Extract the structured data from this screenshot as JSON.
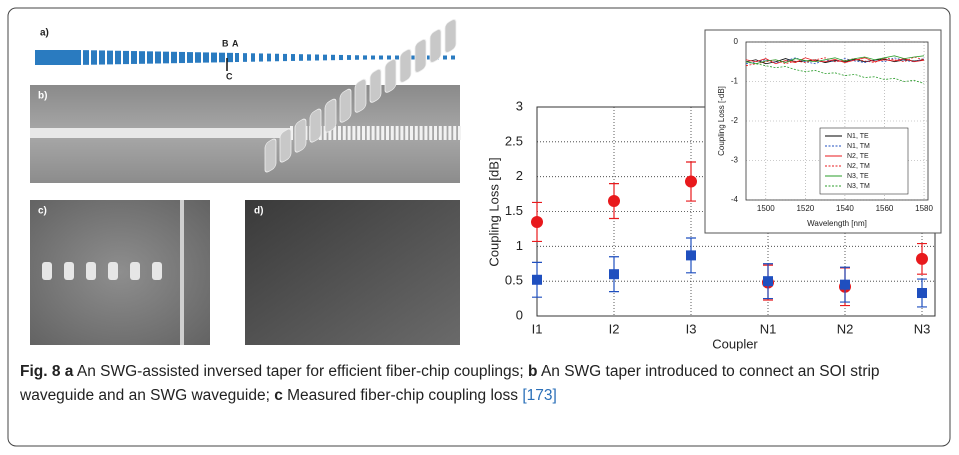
{
  "figure": {
    "panels": {
      "a": "a)",
      "b": "b)",
      "c": "c)",
      "d": "d)"
    },
    "markers": [
      "B",
      "A",
      "C"
    ]
  },
  "caption": {
    "label": "Fig. 8",
    "parts": [
      {
        "letter": "a",
        "text": "An SWG-assisted inversed taper for efficient fiber-chip couplings;"
      },
      {
        "letter": "b",
        "text": "An SWG taper introduced to connect an SOI strip waveguide and an SWG waveguide;"
      },
      {
        "letter": "c",
        "text": "Measured fiber-chip coupling loss"
      }
    ],
    "ref": "[173]"
  },
  "chart_data": [
    {
      "type": "scatter",
      "x_label": "Coupler",
      "y_label": "Coupling Loss [dB]",
      "categories": [
        "I1",
        "I2",
        "I3",
        "N1",
        "N2",
        "N3"
      ],
      "ylim": [
        0,
        3
      ],
      "yticks": [
        0,
        0.5,
        1,
        1.5,
        2,
        2.5,
        3
      ],
      "grid": true,
      "series": [
        {
          "color": "#e8191c",
          "marker": "circle",
          "values": [
            1.35,
            1.65,
            1.93,
            0.48,
            0.42,
            0.82
          ],
          "errors": [
            0.28,
            0.25,
            0.28,
            0.25,
            0.27,
            0.22
          ]
        },
        {
          "color": "#1f4fbf",
          "marker": "square",
          "values": [
            0.52,
            0.6,
            0.87,
            0.5,
            0.45,
            0.33
          ],
          "errors": [
            0.25,
            0.25,
            0.25,
            0.25,
            0.25,
            0.2
          ]
        }
      ]
    },
    {
      "type": "line",
      "x_label": "Wavelength [nm]",
      "y_label": "Coupling Loss [-dB]",
      "x": [
        1490,
        1495,
        1500,
        1505,
        1510,
        1515,
        1520,
        1525,
        1530,
        1535,
        1540,
        1545,
        1550,
        1555,
        1560,
        1565,
        1570,
        1575,
        1580
      ],
      "xlim": [
        1490,
        1582
      ],
      "xticks": [
        1500,
        1520,
        1540,
        1560,
        1580
      ],
      "ylim": [
        -4,
        0
      ],
      "yticks": [
        -4,
        -3,
        -2,
        -1,
        0
      ],
      "grid": true,
      "legend": "lower right",
      "series": [
        {
          "name": "N1, TE",
          "color": "#000000",
          "dash": false,
          "values": [
            -0.5,
            -0.45,
            -0.55,
            -0.5,
            -0.42,
            -0.5,
            -0.48,
            -0.45,
            -0.52,
            -0.47,
            -0.5,
            -0.44,
            -0.5,
            -0.46,
            -0.43,
            -0.5,
            -0.45,
            -0.48,
            -0.45
          ]
        },
        {
          "name": "N1, TM",
          "color": "#1f4fbf",
          "dash": true,
          "values": [
            -0.55,
            -0.5,
            -0.45,
            -0.52,
            -0.48,
            -0.4,
            -0.5,
            -0.55,
            -0.45,
            -0.5,
            -0.42,
            -0.48,
            -0.52,
            -0.45,
            -0.5,
            -0.4,
            -0.47,
            -0.5,
            -0.42
          ]
        },
        {
          "name": "N2, TE",
          "color": "#e8191c",
          "dash": false,
          "values": [
            -0.45,
            -0.5,
            -0.42,
            -0.55,
            -0.47,
            -0.52,
            -0.4,
            -0.48,
            -0.5,
            -0.44,
            -0.52,
            -0.46,
            -0.4,
            -0.5,
            -0.45,
            -0.48,
            -0.42,
            -0.5,
            -0.46
          ]
        },
        {
          "name": "N2, TM",
          "color": "#e8191c",
          "dash": true,
          "values": [
            -0.6,
            -0.55,
            -0.5,
            -0.45,
            -0.55,
            -0.48,
            -0.52,
            -0.45,
            -0.4,
            -0.5,
            -0.47,
            -0.42,
            -0.48,
            -0.52,
            -0.4,
            -0.45,
            -0.5,
            -0.38,
            -0.45
          ]
        },
        {
          "name": "N3, TE",
          "color": "#2a9d2a",
          "dash": false,
          "values": [
            -0.5,
            -0.55,
            -0.48,
            -0.45,
            -0.52,
            -0.42,
            -0.47,
            -0.5,
            -0.45,
            -0.4,
            -0.48,
            -0.42,
            -0.38,
            -0.45,
            -0.4,
            -0.35,
            -0.42,
            -0.38,
            -0.35
          ]
        },
        {
          "name": "N3, TM",
          "color": "#2a9d2a",
          "dash": true,
          "values": [
            -0.5,
            -0.55,
            -0.6,
            -0.65,
            -0.62,
            -0.7,
            -0.75,
            -0.72,
            -0.8,
            -0.78,
            -0.85,
            -0.82,
            -0.9,
            -0.88,
            -0.95,
            -0.92,
            -1.0,
            -0.97,
            -1.05
          ]
        }
      ]
    }
  ]
}
